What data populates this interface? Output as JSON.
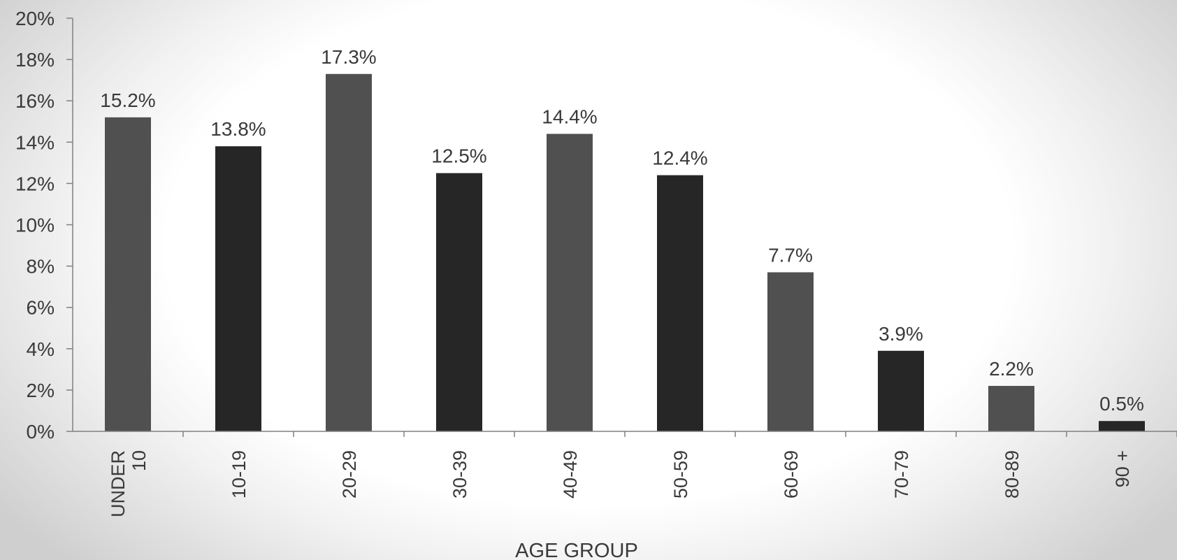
{
  "chart_data": {
    "type": "bar",
    "categories": [
      [
        "UNDER",
        "10"
      ],
      [
        "10-19"
      ],
      [
        "20-29"
      ],
      [
        "30-39"
      ],
      [
        "40-49"
      ],
      [
        "50-59"
      ],
      [
        "60-69"
      ],
      [
        "70-79"
      ],
      [
        "80-89"
      ],
      [
        "90 +"
      ]
    ],
    "values": [
      15.2,
      13.8,
      17.3,
      12.5,
      14.4,
      12.4,
      7.7,
      3.9,
      2.2,
      0.5
    ],
    "data_labels": [
      "15.2%",
      "13.8%",
      "17.3%",
      "12.5%",
      "14.4%",
      "12.4%",
      "7.7%",
      "3.9%",
      "2.2%",
      "0.5%"
    ],
    "bar_colors": [
      "#505050",
      "#262626",
      "#505050",
      "#262626",
      "#505050",
      "#262626",
      "#505050",
      "#262626",
      "#505050",
      "#262626"
    ],
    "xlabel": "AGE GROUP",
    "ylabel": "",
    "ylim": [
      0,
      20
    ],
    "yticks": [
      0,
      2,
      4,
      6,
      8,
      10,
      12,
      14,
      16,
      18,
      20
    ],
    "ytick_labels": [
      "0%",
      "2%",
      "4%",
      "6%",
      "8%",
      "10%",
      "12%",
      "14%",
      "16%",
      "18%",
      "20%"
    ],
    "grid": false,
    "legend": "none"
  }
}
